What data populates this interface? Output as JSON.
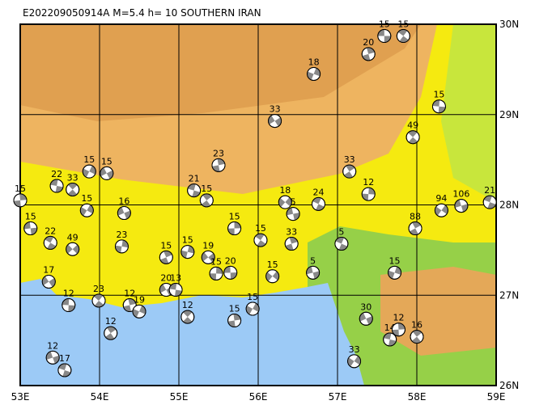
{
  "map": {
    "title": "E202209050914A  M=5.4  h= 10 SOUTHERN IRAN",
    "lon_range": [
      53,
      59
    ],
    "lat_range": [
      26,
      30
    ],
    "lon_ticks": [
      {
        "value": 53,
        "label": "53E"
      },
      {
        "value": 54,
        "label": "54E"
      },
      {
        "value": 55,
        "label": "55E"
      },
      {
        "value": 56,
        "label": "56E"
      },
      {
        "value": 57,
        "label": "57E"
      },
      {
        "value": 58,
        "label": "58E"
      },
      {
        "value": 59,
        "label": "59E"
      }
    ],
    "lat_ticks": [
      {
        "value": 26,
        "label": "26N"
      },
      {
        "value": 27,
        "label": "27N"
      },
      {
        "value": 28,
        "label": "28N"
      },
      {
        "value": 29,
        "label": "29N"
      },
      {
        "value": 30,
        "label": "30N"
      }
    ],
    "events": [
      {
        "lon": 57.59,
        "lat": 29.87,
        "depth": 15
      },
      {
        "lon": 57.83,
        "lat": 29.87,
        "depth": 15
      },
      {
        "lon": 57.39,
        "lat": 29.67,
        "depth": 20
      },
      {
        "lon": 56.7,
        "lat": 29.45,
        "depth": 18
      },
      {
        "lon": 56.21,
        "lat": 28.93,
        "depth": 33
      },
      {
        "lon": 58.28,
        "lat": 29.09,
        "depth": 15
      },
      {
        "lon": 57.95,
        "lat": 28.75,
        "depth": 49
      },
      {
        "lon": 55.5,
        "lat": 28.44,
        "depth": 23
      },
      {
        "lon": 53.87,
        "lat": 28.37,
        "depth": 15
      },
      {
        "lon": 54.09,
        "lat": 28.35,
        "depth": 15
      },
      {
        "lon": 53.46,
        "lat": 28.21,
        "depth": 22
      },
      {
        "lon": 53.66,
        "lat": 28.17,
        "depth": 33
      },
      {
        "lon": 53.0,
        "lat": 28.05,
        "depth": 15
      },
      {
        "lon": 53.84,
        "lat": 27.94,
        "depth": 15
      },
      {
        "lon": 54.31,
        "lat": 27.91,
        "depth": 16
      },
      {
        "lon": 55.19,
        "lat": 28.16,
        "depth": 21
      },
      {
        "lon": 55.35,
        "lat": 28.05,
        "depth": 15
      },
      {
        "lon": 55.7,
        "lat": 27.74,
        "depth": 15
      },
      {
        "lon": 58.31,
        "lat": 27.94,
        "depth": 94
      },
      {
        "lon": 58.56,
        "lat": 27.99,
        "depth": 106
      },
      {
        "lon": 58.92,
        "lat": 28.03,
        "depth": 21
      },
      {
        "lon": 57.15,
        "lat": 28.37,
        "depth": 33
      },
      {
        "lon": 57.39,
        "lat": 28.12,
        "depth": 12
      },
      {
        "lon": 56.34,
        "lat": 28.03,
        "depth": 18
      },
      {
        "lon": 56.44,
        "lat": 27.9,
        "depth": 5
      },
      {
        "lon": 56.76,
        "lat": 28.01,
        "depth": 24
      },
      {
        "lon": 57.98,
        "lat": 27.74,
        "depth": 88
      },
      {
        "lon": 54.28,
        "lat": 27.54,
        "depth": 23
      },
      {
        "lon": 53.66,
        "lat": 27.51,
        "depth": 49
      },
      {
        "lon": 53.13,
        "lat": 27.74,
        "depth": 15
      },
      {
        "lon": 53.38,
        "lat": 27.58,
        "depth": 22
      },
      {
        "lon": 54.84,
        "lat": 27.42,
        "depth": 15
      },
      {
        "lon": 55.11,
        "lat": 27.48,
        "depth": 15
      },
      {
        "lon": 55.37,
        "lat": 27.42,
        "depth": 19
      },
      {
        "lon": 55.65,
        "lat": 27.25,
        "depth": 20
      },
      {
        "lon": 56.03,
        "lat": 27.61,
        "depth": 15
      },
      {
        "lon": 56.42,
        "lat": 27.57,
        "depth": 33
      },
      {
        "lon": 57.72,
        "lat": 27.25,
        "depth": 15
      },
      {
        "lon": 53.36,
        "lat": 27.15,
        "depth": 17
      },
      {
        "lon": 53.61,
        "lat": 26.89,
        "depth": 12
      },
      {
        "lon": 53.99,
        "lat": 26.94,
        "depth": 23
      },
      {
        "lon": 54.38,
        "lat": 26.89,
        "depth": 12
      },
      {
        "lon": 54.5,
        "lat": 26.82,
        "depth": 19
      },
      {
        "lon": 54.84,
        "lat": 27.06,
        "depth": 20
      },
      {
        "lon": 54.96,
        "lat": 27.06,
        "depth": 13
      },
      {
        "lon": 55.11,
        "lat": 26.76,
        "depth": 12
      },
      {
        "lon": 55.7,
        "lat": 26.72,
        "depth": 15
      },
      {
        "lon": 55.93,
        "lat": 26.85,
        "depth": 15
      },
      {
        "lon": 57.36,
        "lat": 26.74,
        "depth": 30
      },
      {
        "lon": 57.66,
        "lat": 26.51,
        "depth": 14
      },
      {
        "lon": 58.0,
        "lat": 26.54,
        "depth": 16
      },
      {
        "lon": 57.77,
        "lat": 26.62,
        "depth": 12
      },
      {
        "lon": 57.21,
        "lat": 26.27,
        "depth": 33
      },
      {
        "lon": 53.41,
        "lat": 26.31,
        "depth": 12
      },
      {
        "lon": 53.56,
        "lat": 26.17,
        "depth": 17
      },
      {
        "lon": 54.14,
        "lat": 26.58,
        "depth": 12
      },
      {
        "lon": 55.47,
        "lat": 27.24,
        "depth": 15
      },
      {
        "lon": 56.18,
        "lat": 27.21,
        "depth": 15
      },
      {
        "lon": 56.69,
        "lat": 27.25,
        "depth": 5
      },
      {
        "lon": 57.05,
        "lat": 27.57,
        "depth": 5
      }
    ]
  }
}
